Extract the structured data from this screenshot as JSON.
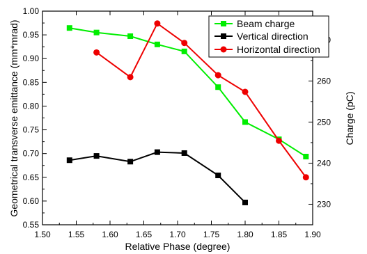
{
  "chart_data": {
    "type": "line",
    "xlabel": "Relative Phase (degree)",
    "ylabel_left": "Geometrical transverse emittance (mm*mrad)",
    "ylabel_right": "Charge (pC)",
    "xlim": [
      1.5,
      1.9
    ],
    "ylim_left": [
      0.55,
      1.0
    ],
    "ylim_right": [
      225,
      277
    ],
    "x_ticks": [
      "1.50",
      "1.55",
      "1.60",
      "1.65",
      "1.70",
      "1.75",
      "1.80",
      "1.85",
      "1.90"
    ],
    "y_left_ticks": [
      "0.55",
      "0.60",
      "0.65",
      "0.70",
      "0.75",
      "0.80",
      "0.85",
      "0.90",
      "0.95",
      "1.00"
    ],
    "y_right_ticks": [
      "230",
      "240",
      "250",
      "260",
      "270"
    ],
    "legend_position": "top-right",
    "grid": false,
    "series": [
      {
        "name": "Beam charge",
        "axis": "right",
        "color": "#00ee00",
        "marker": "square",
        "x": [
          1.54,
          1.58,
          1.63,
          1.67,
          1.71,
          1.76,
          1.8,
          1.85,
          1.89
        ],
        "y": [
          272.9,
          271.8,
          270.9,
          268.9,
          267.2,
          258.5,
          250.0,
          245.8,
          241.6
        ]
      },
      {
        "name": "Vertical direction",
        "axis": "left",
        "color": "#000000",
        "marker": "square",
        "x": [
          1.54,
          1.58,
          1.63,
          1.67,
          1.71,
          1.76,
          1.8
        ],
        "y": [
          0.686,
          0.695,
          0.683,
          0.703,
          0.701,
          0.654,
          0.597
        ]
      },
      {
        "name": "Horizontal direction",
        "axis": "left",
        "color": "#ee0000",
        "marker": "circle",
        "x": [
          1.58,
          1.63,
          1.67,
          1.71,
          1.76,
          1.8,
          1.85,
          1.89
        ],
        "y": [
          0.913,
          0.861,
          0.974,
          0.933,
          0.865,
          0.83,
          0.727,
          0.65
        ]
      }
    ]
  }
}
